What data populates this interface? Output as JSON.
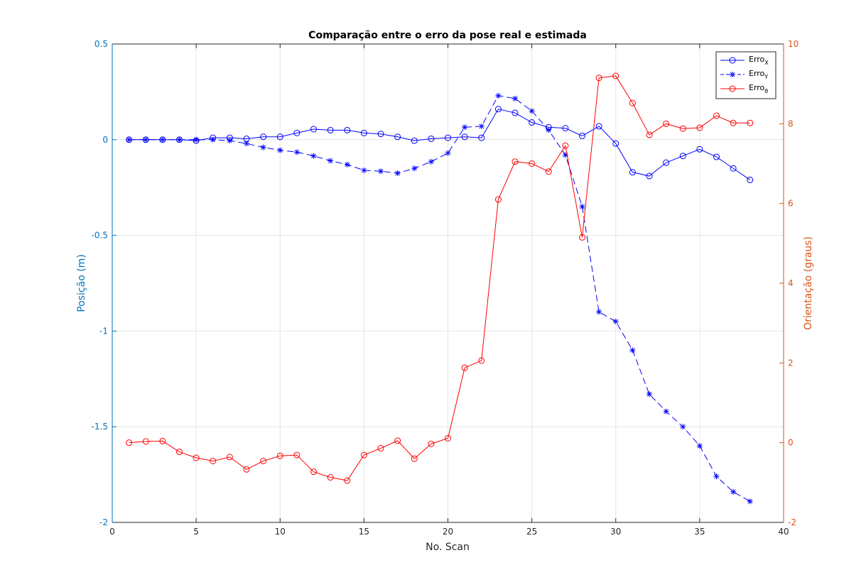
{
  "chart_data": {
    "type": "line",
    "title": "Comparação entre o erro da pose real e estimada",
    "xlabel": "No. Scan",
    "ylabel_left": "Posição (m)",
    "ylabel_right": "Orientação (graus)",
    "xlim": [
      0,
      40
    ],
    "ylim_left": [
      -2,
      0.5
    ],
    "ylim_right": [
      -2,
      10
    ],
    "xticks": [
      "0",
      "5",
      "10",
      "15",
      "20",
      "25",
      "30",
      "35",
      "40"
    ],
    "yticks_left": [
      "0.5",
      "0",
      "-0.5",
      "-1",
      "-1.5",
      "-2"
    ],
    "yticks_right": [
      "10",
      "8",
      "6",
      "4",
      "2",
      "0",
      "-2"
    ],
    "grid": true,
    "legend_position": "top-right",
    "x": [
      1,
      2,
      3,
      4,
      5,
      6,
      7,
      8,
      9,
      10,
      11,
      12,
      13,
      14,
      15,
      16,
      17,
      18,
      19,
      20,
      21,
      22,
      23,
      24,
      25,
      26,
      27,
      28,
      29,
      30,
      31,
      32,
      33,
      34,
      35,
      36,
      37,
      38
    ],
    "series": [
      {
        "name": "Erro",
        "subscript": "X",
        "axis": "left",
        "values": [
          0.0,
          0.0,
          0.0,
          0.0,
          -0.005,
          0.01,
          0.01,
          0.005,
          0.015,
          0.015,
          0.035,
          0.055,
          0.05,
          0.05,
          0.035,
          0.03,
          0.015,
          -0.005,
          0.005,
          0.01,
          0.015,
          0.01,
          0.16,
          0.14,
          0.09,
          0.065,
          0.06,
          0.02,
          0.07,
          -0.02,
          -0.17,
          -0.19,
          -0.12,
          -0.085,
          -0.05,
          -0.09,
          -0.15,
          -0.21
        ]
      },
      {
        "name": "Erro",
        "subscript": "Y",
        "axis": "left",
        "values": [
          0.0,
          0.0,
          0.0,
          0.0,
          0.0,
          0.0,
          -0.005,
          -0.02,
          -0.04,
          -0.055,
          -0.065,
          -0.085,
          -0.11,
          -0.13,
          -0.16,
          -0.165,
          -0.175,
          -0.15,
          -0.115,
          -0.07,
          0.065,
          0.07,
          0.23,
          0.215,
          0.15,
          0.05,
          -0.08,
          -0.35,
          -0.9,
          -0.95,
          -1.1,
          -1.33,
          -1.42,
          -1.5,
          -1.6,
          -1.76,
          -1.84,
          -1.89
        ]
      },
      {
        "name": "Erro",
        "subscript": "θ",
        "axis": "right",
        "values": [
          0.0,
          0.03,
          0.04,
          -0.23,
          -0.38,
          -0.46,
          -0.36,
          -0.67,
          -0.46,
          -0.33,
          -0.31,
          -0.73,
          -0.87,
          -0.95,
          -0.31,
          -0.14,
          0.05,
          -0.4,
          -0.03,
          0.11,
          1.88,
          2.06,
          6.1,
          7.05,
          7.0,
          6.8,
          7.45,
          5.15,
          9.15,
          9.2,
          8.52,
          7.72,
          8.0,
          7.88,
          7.9,
          8.2,
          8.02,
          8.02
        ]
      }
    ],
    "colors": {
      "left_axis": "#0072bd",
      "right_axis": "#d95319",
      "series_blue": "#0000ff",
      "series_red": "#ff0000",
      "grid": "#e6e6e6"
    }
  }
}
